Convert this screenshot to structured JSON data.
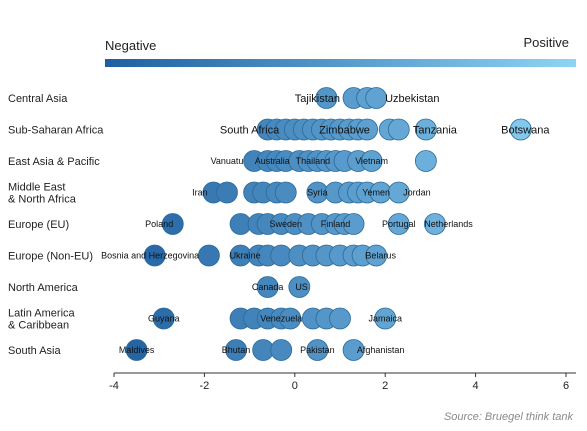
{
  "chart_data": {
    "type": "scatter",
    "title": "",
    "xlabel": "",
    "ylabel": "",
    "xlim": [
      -4,
      6
    ],
    "xticks": [
      -4,
      -2,
      0,
      2,
      4,
      6
    ],
    "legend": {
      "negative_label": "Negative",
      "positive_label": "Positive",
      "gradient_from": "#1f5fa0",
      "gradient_to": "#8fd3f4"
    },
    "colors": {
      "low": "#1f5fa0",
      "high": "#8fd3f4",
      "stroke": "#2a6a9a"
    },
    "categories": [
      "Central Asia",
      "Sub-Saharan Africa",
      "East Asia & Pacific",
      "Middle East\n& North Africa",
      "Europe (EU)",
      "Europe (Non-EU)",
      "North America",
      "Latin America\n& Caribbean",
      "South Asia"
    ],
    "rows": [
      {
        "region": "Central Asia",
        "points": [
          0.7,
          1.3,
          1.6,
          1.8
        ],
        "labels": [
          {
            "text": "Tajikistan",
            "x": 0.5,
            "size": "big"
          },
          {
            "text": "Uzbekistan",
            "x": 2.6,
            "size": "big"
          }
        ]
      },
      {
        "region": "Sub-Saharan Africa",
        "points": [
          -0.6,
          -0.4,
          -0.2,
          0.0,
          0.2,
          0.4,
          0.6,
          0.8,
          1.0,
          1.2,
          1.4,
          1.6,
          2.1,
          2.3,
          2.9,
          5.0
        ],
        "labels": [
          {
            "text": "South Africa",
            "x": -1.0,
            "size": "big"
          },
          {
            "text": "Zimbabwe",
            "x": 1.1,
            "size": "big"
          },
          {
            "text": "Tanzania",
            "x": 3.1,
            "size": "big"
          },
          {
            "text": "Botswana",
            "x": 5.1,
            "size": "big"
          }
        ]
      },
      {
        "region": "East Asia & Pacific",
        "points": [
          -0.9,
          -0.6,
          -0.4,
          -0.2,
          0.1,
          0.3,
          0.5,
          0.7,
          0.9,
          1.1,
          1.4,
          1.7,
          2.9
        ],
        "labels": [
          {
            "text": "Vanuatu",
            "x": -1.5,
            "size": "small"
          },
          {
            "text": "Australia",
            "x": -0.5,
            "size": "small"
          },
          {
            "text": "Thailand",
            "x": 0.4,
            "size": "small"
          },
          {
            "text": "Vietnam",
            "x": 1.7,
            "size": "small"
          }
        ]
      },
      {
        "region": "Middle East\n& North Africa",
        "points": [
          -1.8,
          -1.5,
          -0.9,
          -0.7,
          -0.4,
          -0.2,
          0.5,
          0.9,
          1.2,
          1.4,
          1.6,
          1.9,
          2.3
        ],
        "labels": [
          {
            "text": "Iran",
            "x": -2.1,
            "size": "small"
          },
          {
            "text": "Syria",
            "x": 0.5,
            "size": "small"
          },
          {
            "text": "Yemen",
            "x": 1.8,
            "size": "small"
          },
          {
            "text": "Jordan",
            "x": 2.7,
            "size": "small"
          }
        ]
      },
      {
        "region": "Europe (EU)",
        "points": [
          -2.7,
          -1.2,
          -0.8,
          -0.6,
          -0.3,
          0.0,
          0.3,
          0.6,
          0.9,
          1.1,
          1.3,
          2.3,
          3.1
        ],
        "labels": [
          {
            "text": "Poland",
            "x": -3.0,
            "size": "small"
          },
          {
            "text": "Sweden",
            "x": -0.2,
            "size": "small"
          },
          {
            "text": "Finland",
            "x": 0.9,
            "size": "small"
          },
          {
            "text": "Portugal",
            "x": 2.3,
            "size": "small"
          },
          {
            "text": "Netherlands",
            "x": 3.4,
            "size": "small"
          }
        ]
      },
      {
        "region": "Europe (Non-EU)",
        "points": [
          -3.1,
          -1.9,
          -1.2,
          -0.8,
          -0.6,
          -0.3,
          0.1,
          0.4,
          0.7,
          1.0,
          1.3,
          1.5,
          1.8
        ],
        "labels": [
          {
            "text": "Bosnia and Herzegovina",
            "x": -3.2,
            "size": "small"
          },
          {
            "text": "Ukraine",
            "x": -1.1,
            "size": "small"
          },
          {
            "text": "Belarus",
            "x": 1.9,
            "size": "small"
          }
        ]
      },
      {
        "region": "North America",
        "points": [
          -0.6,
          0.1
        ],
        "labels": [
          {
            "text": "Canada",
            "x": -0.6,
            "size": "small"
          },
          {
            "text": "US",
            "x": 0.15,
            "size": "small"
          }
        ]
      },
      {
        "region": "Latin America\n& Caribbean",
        "points": [
          -2.9,
          -1.2,
          -0.9,
          -0.6,
          -0.3,
          -0.1,
          0.4,
          0.7,
          1.0,
          2.0
        ],
        "labels": [
          {
            "text": "Guyana",
            "x": -2.9,
            "size": "small"
          },
          {
            "text": "Venezuela",
            "x": -0.3,
            "size": "small"
          },
          {
            "text": "Jamaica",
            "x": 2.0,
            "size": "small"
          }
        ]
      },
      {
        "region": "South Asia",
        "points": [
          -3.5,
          -1.3,
          -0.7,
          -0.3,
          0.5,
          1.3
        ],
        "labels": [
          {
            "text": "Maldives",
            "x": -3.5,
            "size": "small"
          },
          {
            "text": "Bhutan",
            "x": -1.3,
            "size": "small"
          },
          {
            "text": "Pakistan",
            "x": 0.5,
            "size": "small"
          },
          {
            "text": "Afghanistan",
            "x": 1.9,
            "size": "small"
          }
        ]
      }
    ]
  },
  "source": "Source: Bruegel think tank"
}
